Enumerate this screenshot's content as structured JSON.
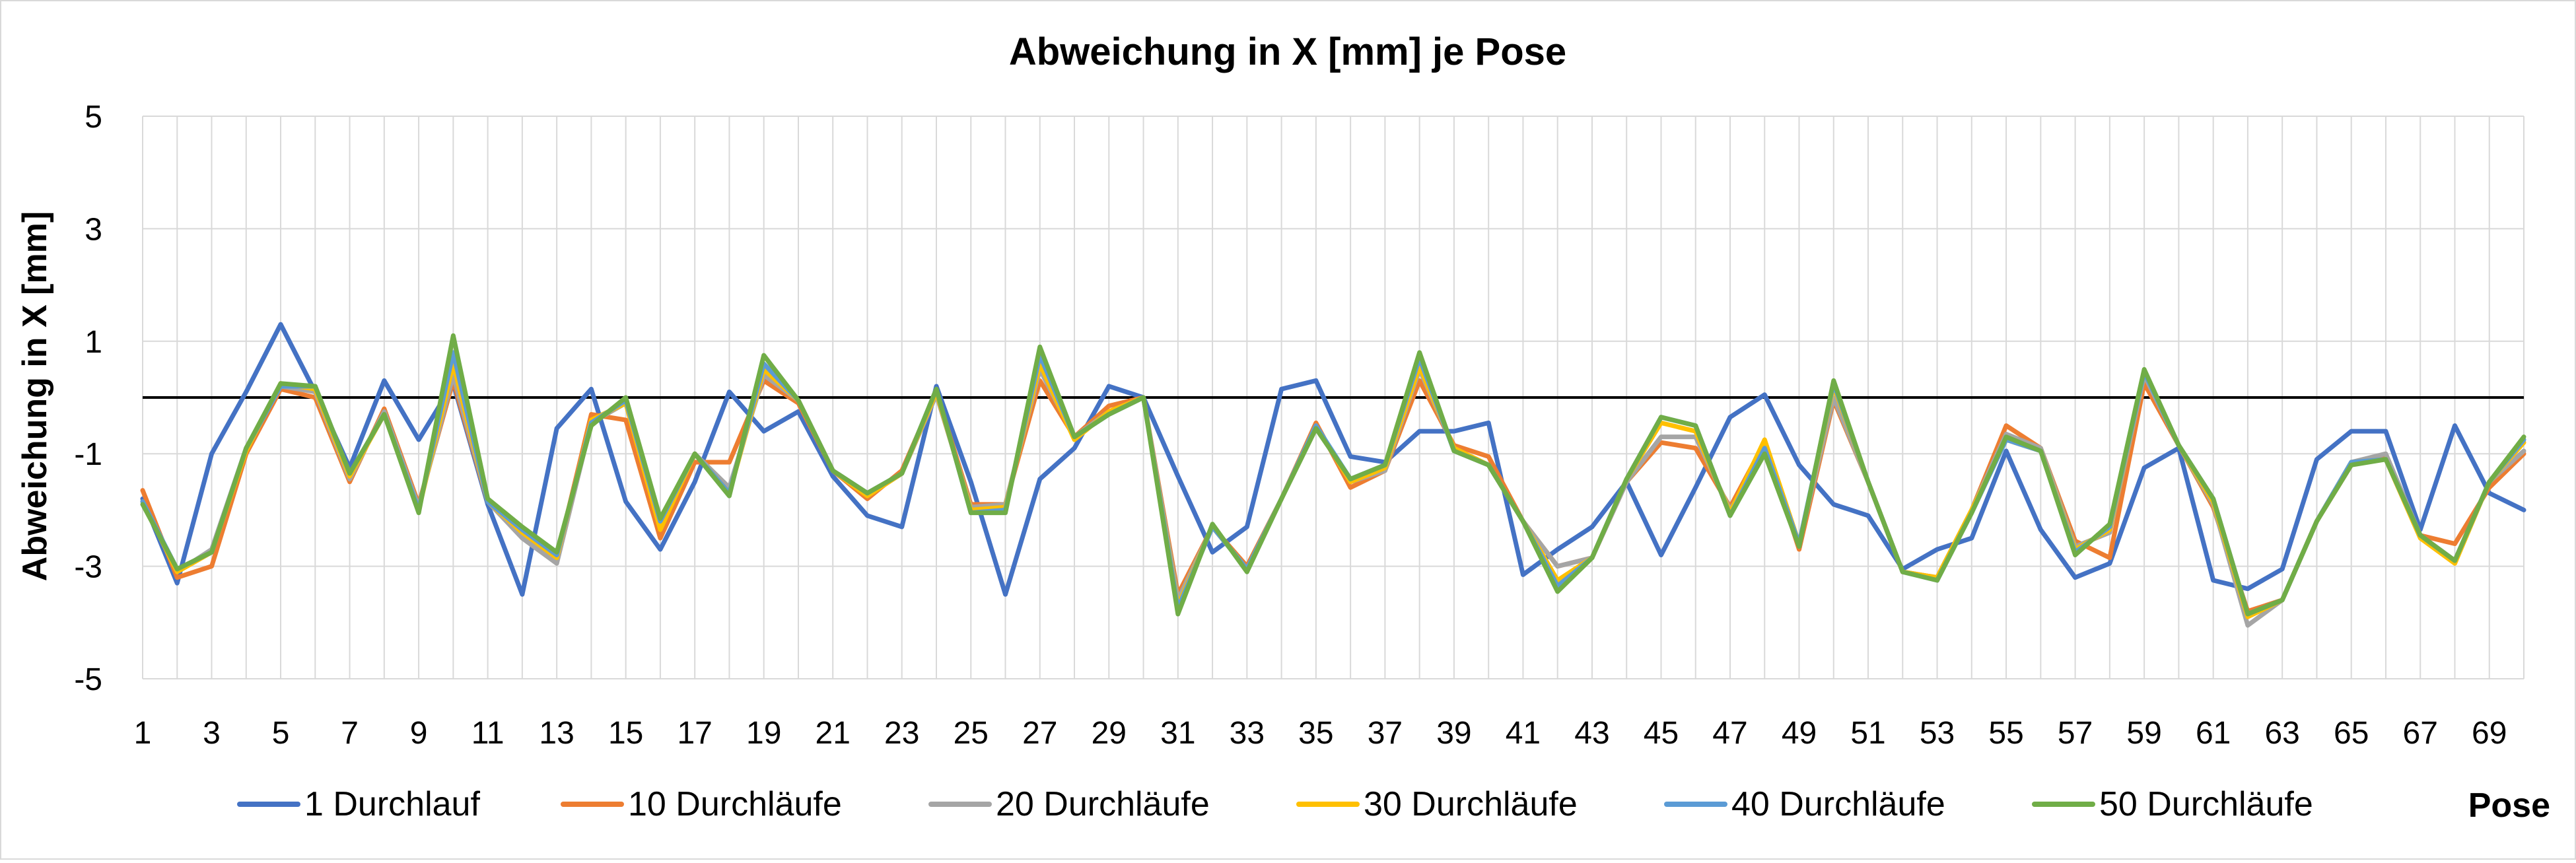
{
  "chart_data": {
    "type": "line",
    "title": "Abweichung in X [mm] je Pose",
    "xlabel": "Pose",
    "ylabel": "Abweichung in X [mm]",
    "ylim": [
      -5,
      5
    ],
    "yticks": [
      -5,
      -3,
      -1,
      1,
      3,
      5
    ],
    "xlim": [
      1,
      70
    ],
    "xticks": [
      1,
      3,
      5,
      7,
      9,
      11,
      13,
      15,
      17,
      19,
      21,
      23,
      25,
      27,
      29,
      31,
      33,
      35,
      37,
      39,
      41,
      43,
      45,
      47,
      49,
      51,
      53,
      55,
      57,
      59,
      61,
      63,
      65,
      67,
      69
    ],
    "grid": true,
    "zero_line": true,
    "legend_position": "bottom",
    "x": [
      1,
      2,
      3,
      4,
      5,
      6,
      7,
      8,
      9,
      10,
      11,
      12,
      13,
      14,
      15,
      16,
      17,
      18,
      19,
      20,
      21,
      22,
      23,
      24,
      25,
      26,
      27,
      28,
      29,
      30,
      31,
      32,
      33,
      34,
      35,
      36,
      37,
      38,
      39,
      40,
      41,
      42,
      43,
      44,
      45,
      46,
      47,
      48,
      49,
      50,
      51,
      52,
      53,
      54,
      55,
      56,
      57,
      58,
      59,
      60,
      61,
      62,
      63,
      64,
      65,
      66,
      67,
      68,
      69,
      70
    ],
    "series": [
      {
        "name": "1 Durchlauf",
        "color": "#4472C4",
        "values": [
          -1.8,
          -3.3,
          -1.0,
          0.1,
          1.3,
          0.1,
          -1.25,
          0.3,
          -0.75,
          0.25,
          -1.9,
          -3.5,
          -0.55,
          0.15,
          -1.85,
          -2.7,
          -1.5,
          0.1,
          -0.6,
          -0.25,
          -1.4,
          -2.1,
          -2.3,
          0.2,
          -1.5,
          -3.5,
          -1.45,
          -0.9,
          0.2,
          0.0,
          -1.4,
          -2.75,
          -2.3,
          0.15,
          0.3,
          -1.05,
          -1.15,
          -0.6,
          -0.6,
          -0.45,
          -3.15,
          -2.7,
          -2.3,
          -1.5,
          -2.8,
          -1.6,
          -0.35,
          0.05,
          -1.2,
          -1.9,
          -2.1,
          -3.05,
          -2.7,
          -2.5,
          -0.95,
          -2.35,
          -3.2,
          -2.95,
          -1.25,
          -0.9,
          -3.25,
          -3.4,
          -3.05,
          -1.1,
          -0.6,
          -0.6,
          -2.35,
          -0.5,
          -1.7,
          -2.0
        ]
      },
      {
        "name": "10 Durchläufe",
        "color": "#ED7D31",
        "values": [
          -1.65,
          -3.2,
          -3.0,
          -1.0,
          0.15,
          0.0,
          -1.5,
          -0.2,
          -1.9,
          0.3,
          -1.85,
          -2.4,
          -2.85,
          -0.3,
          -0.4,
          -2.5,
          -1.15,
          -1.15,
          0.3,
          -0.1,
          -1.3,
          -1.8,
          -1.3,
          0.1,
          -1.9,
          -1.9,
          0.3,
          -0.7,
          -0.15,
          0.0,
          -3.5,
          -2.3,
          -3.0,
          -1.8,
          -0.45,
          -1.6,
          -1.3,
          0.3,
          -0.85,
          -1.05,
          -2.2,
          -3.0,
          -2.85,
          -1.5,
          -0.8,
          -0.9,
          -1.95,
          -0.8,
          -2.7,
          -0.05,
          -1.5,
          -3.1,
          -3.2,
          -2.0,
          -0.5,
          -0.9,
          -2.55,
          -2.85,
          0.25,
          -0.85,
          -1.95,
          -3.8,
          -3.6,
          -2.2,
          -1.2,
          -1.05,
          -2.45,
          -2.6,
          -1.6,
          -1.0
        ]
      },
      {
        "name": "20 Durchläufe",
        "color": "#A5A5A5",
        "values": [
          -1.85,
          -3.1,
          -2.7,
          -0.9,
          0.2,
          0.1,
          -1.45,
          -0.25,
          -1.95,
          0.4,
          -1.85,
          -2.5,
          -2.95,
          -0.45,
          -0.1,
          -2.3,
          -1.0,
          -1.6,
          0.4,
          -0.05,
          -1.3,
          -1.75,
          -1.35,
          0.05,
          -1.95,
          -1.9,
          0.5,
          -0.7,
          -0.25,
          0.0,
          -3.6,
          -2.3,
          -3.05,
          -1.8,
          -0.5,
          -1.5,
          -1.3,
          0.5,
          -0.9,
          -1.2,
          -2.2,
          -3.0,
          -2.85,
          -1.5,
          -0.7,
          -0.7,
          -2.0,
          -1.0,
          -2.6,
          0.0,
          -1.5,
          -3.1,
          -3.2,
          -2.0,
          -0.65,
          -0.9,
          -2.65,
          -2.4,
          0.4,
          -0.85,
          -1.9,
          -4.05,
          -3.6,
          -2.2,
          -1.15,
          -1.0,
          -2.45,
          -2.9,
          -1.5,
          -0.95
        ]
      },
      {
        "name": "30 Durchläufe",
        "color": "#FFC000",
        "values": [
          -1.85,
          -3.1,
          -2.75,
          -0.95,
          0.25,
          0.15,
          -1.4,
          -0.3,
          -2.0,
          0.6,
          -1.85,
          -2.4,
          -2.85,
          -0.4,
          -0.1,
          -2.35,
          -1.0,
          -1.7,
          0.5,
          -0.05,
          -1.3,
          -1.75,
          -1.35,
          0.1,
          -2.0,
          -1.95,
          0.6,
          -0.75,
          -0.25,
          0.0,
          -3.7,
          -2.3,
          -3.05,
          -1.8,
          -0.5,
          -1.5,
          -1.25,
          0.55,
          -0.9,
          -1.2,
          -2.2,
          -3.25,
          -2.85,
          -1.45,
          -0.45,
          -0.6,
          -2.05,
          -0.75,
          -2.6,
          0.2,
          -1.5,
          -3.1,
          -3.2,
          -2.0,
          -0.75,
          -0.95,
          -2.7,
          -2.35,
          0.45,
          -0.85,
          -1.85,
          -3.9,
          -3.6,
          -2.2,
          -1.15,
          -1.1,
          -2.5,
          -2.95,
          -1.5,
          -0.8
        ]
      },
      {
        "name": "40 Durchläufe",
        "color": "#5B9BD5",
        "values": [
          -1.85,
          -3.05,
          -2.75,
          -0.9,
          0.2,
          0.2,
          -1.35,
          -0.3,
          -2.0,
          0.8,
          -1.85,
          -2.35,
          -2.8,
          -0.45,
          -0.05,
          -2.2,
          -1.0,
          -1.7,
          0.6,
          -0.05,
          -1.3,
          -1.7,
          -1.35,
          0.15,
          -2.05,
          -2.0,
          0.75,
          -0.7,
          -0.3,
          0.0,
          -3.75,
          -2.3,
          -3.05,
          -1.8,
          -0.5,
          -1.45,
          -1.2,
          0.7,
          -0.95,
          -1.2,
          -2.2,
          -3.35,
          -2.85,
          -1.45,
          -0.35,
          -0.5,
          -2.1,
          -0.9,
          -2.6,
          0.25,
          -1.5,
          -3.1,
          -3.25,
          -2.05,
          -0.75,
          -0.95,
          -2.75,
          -2.3,
          0.45,
          -0.85,
          -1.8,
          -3.85,
          -3.6,
          -2.2,
          -1.15,
          -1.1,
          -2.45,
          -2.9,
          -1.5,
          -0.75
        ]
      },
      {
        "name": "50 Durchläufe",
        "color": "#70AD47",
        "values": [
          -1.9,
          -3.05,
          -2.75,
          -0.9,
          0.25,
          0.2,
          -1.35,
          -0.3,
          -2.05,
          1.1,
          -1.8,
          -2.3,
          -2.75,
          -0.5,
          0.0,
          -2.15,
          -1.0,
          -1.75,
          0.75,
          -0.05,
          -1.3,
          -1.7,
          -1.35,
          0.15,
          -2.05,
          -2.05,
          0.9,
          -0.7,
          -0.3,
          0.0,
          -3.85,
          -2.25,
          -3.1,
          -1.8,
          -0.55,
          -1.45,
          -1.2,
          0.8,
          -0.95,
          -1.2,
          -2.2,
          -3.45,
          -2.85,
          -1.45,
          -0.35,
          -0.5,
          -2.1,
          -1.0,
          -2.65,
          0.3,
          -1.5,
          -3.1,
          -3.25,
          -2.05,
          -0.7,
          -0.95,
          -2.8,
          -2.25,
          0.5,
          -0.85,
          -1.8,
          -3.85,
          -3.6,
          -2.2,
          -1.2,
          -1.1,
          -2.45,
          -2.9,
          -1.5,
          -0.7
        ]
      }
    ]
  }
}
